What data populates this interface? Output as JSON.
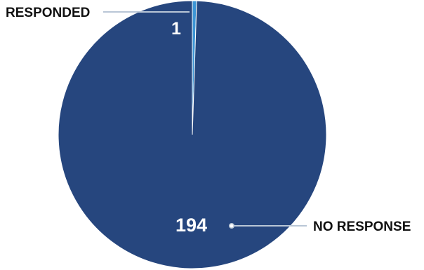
{
  "chart_data": {
    "type": "pie",
    "slices": [
      {
        "label": "RESPONDED",
        "value": 1,
        "display_value": "1",
        "color": "#3d96d6"
      },
      {
        "label": "NO RESPONSE",
        "value": 194,
        "display_value": "194",
        "color": "#26467e"
      }
    ],
    "slice_border_color": "#ffffff",
    "leader_line_color": "#b9c6d6",
    "label_text_color": "#111111",
    "value_text_color": "#ffffff"
  }
}
